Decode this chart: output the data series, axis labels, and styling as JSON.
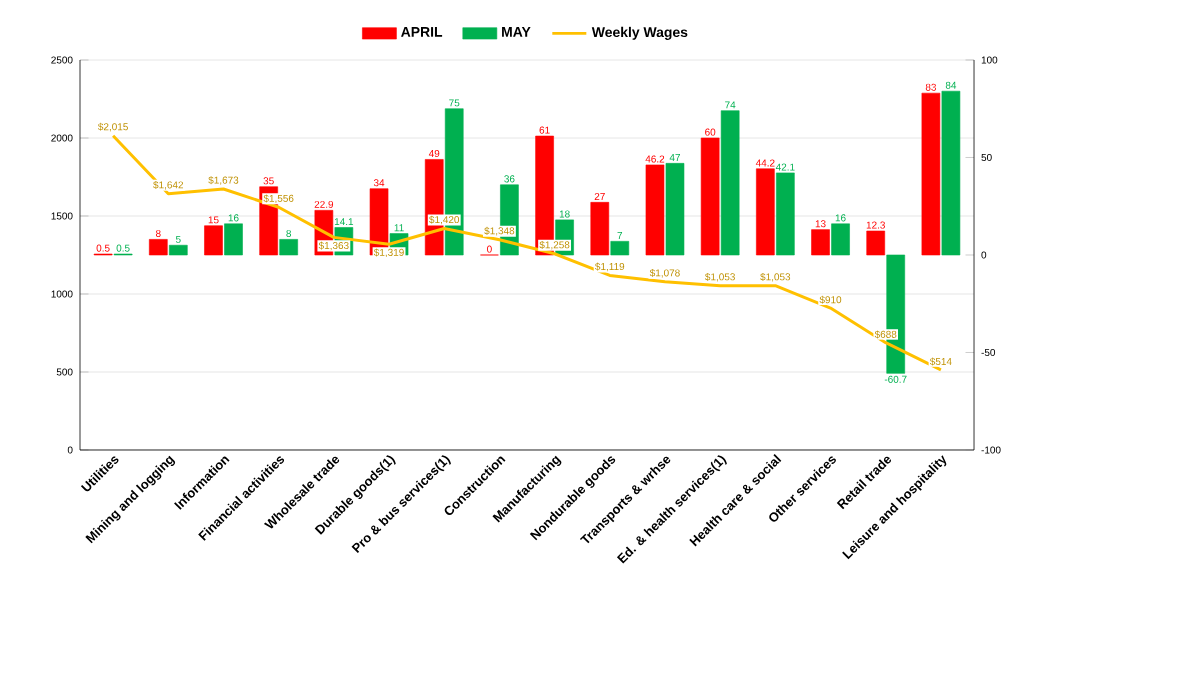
{
  "chart_data": {
    "type": "bar",
    "categories": [
      "Utilities",
      "Mining and logging",
      "Information",
      "Financial activities",
      "Wholesale trade",
      "Durable goods(1)",
      "Pro & bus services(1)",
      "Construction",
      "Manufacturing",
      "Nondurable goods",
      "Transports & wrhse",
      "Ed. & health services(1)",
      "Health care & social",
      "Other services",
      "Retail trade",
      "Leisure and hospitality"
    ],
    "series": [
      {
        "name": "APRIL",
        "color": "#ff0000",
        "axis": "y2",
        "values": [
          0.5,
          8,
          15,
          35,
          22.9,
          34,
          49,
          0,
          61,
          27,
          46.2,
          60,
          44.2,
          13,
          12.3,
          83
        ],
        "value_labels": [
          "0.5",
          "8",
          "15",
          "35",
          "22.9",
          "34",
          "49",
          "0",
          "61",
          "27",
          "46.2",
          "60",
          "44.2",
          "13",
          "12.3",
          "83"
        ]
      },
      {
        "name": "MAY",
        "color": "#00b050",
        "axis": "y2",
        "values": [
          0.5,
          5,
          16,
          8,
          14.1,
          11,
          75,
          36,
          18,
          7,
          47,
          74,
          42.1,
          16,
          -60.7,
          84
        ],
        "value_labels": [
          "0.5",
          "5",
          "16",
          "8",
          "14.1",
          "11",
          "75",
          "36",
          "18",
          "7",
          "47",
          "74",
          "42.1",
          "16",
          "-60.7",
          "84"
        ]
      },
      {
        "name": "Weekly Wages",
        "type": "line",
        "color": "#ffc000",
        "values": [
          2015,
          1642,
          1673,
          1556,
          1363,
          1319,
          1420,
          1348,
          1258,
          1119,
          1078,
          1053,
          1053,
          910,
          688,
          514
        ],
        "value_labels": [
          "$2,015",
          "$1,642",
          "$1,673",
          "$1,556",
          "$1,363",
          "$1,319",
          "$1,420",
          "$1,348",
          "$1,258",
          "$1,119",
          "$1,078",
          "$1,053",
          "$1,053",
          "$910",
          "$688",
          "$514"
        ]
      }
    ],
    "ylim": [
      0,
      2500
    ],
    "yticks": [
      0,
      500,
      1000,
      1500,
      2000,
      2500
    ],
    "y2lim": [
      -100,
      100
    ],
    "y2ticks": [
      -100,
      -50,
      0,
      50,
      100
    ],
    "grid": "y",
    "legend": "top"
  }
}
